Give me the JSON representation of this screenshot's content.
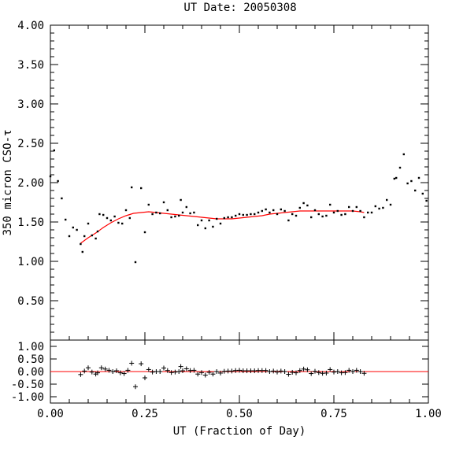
{
  "chart_data": {
    "type": "scatter",
    "title": "UT Date: 20050308",
    "xlabel": "UT (Fraction of Day)",
    "ylabel": "350 micron CSO-τ",
    "grid": false,
    "xlim": [
      0.0,
      1.0
    ],
    "x_ticks": [
      "0.00",
      "0.25",
      "0.50",
      "0.75",
      "1.00"
    ],
    "panels": {
      "main": {
        "ylim": [
          0.0,
          4.0
        ],
        "y_ticks": [
          "0.50",
          "1.00",
          "1.50",
          "2.00",
          "2.50",
          "3.00",
          "3.50",
          "4.00"
        ],
        "series": [
          {
            "kind": "measured_points",
            "color": "#000000",
            "x": [
              0.0,
              0.01,
              0.02,
              0.03,
              0.04,
              0.05,
              0.06,
              0.07,
              0.08,
              0.085,
              0.09,
              0.1,
              0.11,
              0.12,
              0.125,
              0.13,
              0.14,
              0.15,
              0.16,
              0.17,
              0.18,
              0.19,
              0.2,
              0.21,
              0.215,
              0.225,
              0.24,
              0.25,
              0.26,
              0.27,
              0.28,
              0.29,
              0.3,
              0.31,
              0.32,
              0.33,
              0.34,
              0.345,
              0.35,
              0.36,
              0.37,
              0.38,
              0.39,
              0.4,
              0.41,
              0.42,
              0.43,
              0.44,
              0.45,
              0.46,
              0.47,
              0.48,
              0.49,
              0.5,
              0.51,
              0.52,
              0.53,
              0.54,
              0.55,
              0.56,
              0.57,
              0.58,
              0.59,
              0.6,
              0.61,
              0.62,
              0.63,
              0.64,
              0.65,
              0.66,
              0.67,
              0.68,
              0.69,
              0.7,
              0.71,
              0.72,
              0.73,
              0.74,
              0.75,
              0.76,
              0.77,
              0.78,
              0.79,
              0.8,
              0.81,
              0.82,
              0.83,
              0.84,
              0.85,
              0.86,
              0.87,
              0.88,
              0.89,
              0.9,
              0.91,
              0.915,
              0.925,
              0.935,
              0.945,
              0.955,
              0.965,
              0.975,
              0.985,
              0.995
            ],
            "y": [
              2.08,
              2.41,
              2.02,
              1.8,
              1.53,
              1.32,
              1.43,
              1.4,
              1.22,
              1.12,
              1.32,
              1.48,
              1.33,
              1.29,
              1.38,
              1.6,
              1.59,
              1.55,
              1.52,
              1.57,
              1.49,
              1.48,
              1.65,
              1.55,
              1.94,
              0.99,
              1.93,
              1.37,
              1.72,
              1.6,
              1.62,
              1.61,
              1.75,
              1.65,
              1.56,
              1.57,
              1.58,
              1.78,
              1.62,
              1.69,
              1.61,
              1.62,
              1.46,
              1.52,
              1.42,
              1.52,
              1.44,
              1.54,
              1.48,
              1.55,
              1.56,
              1.56,
              1.58,
              1.6,
              1.59,
              1.59,
              1.6,
              1.6,
              1.62,
              1.64,
              1.66,
              1.62,
              1.65,
              1.6,
              1.66,
              1.64,
              1.52,
              1.6,
              1.58,
              1.68,
              1.74,
              1.71,
              1.56,
              1.65,
              1.6,
              1.57,
              1.58,
              1.72,
              1.62,
              1.64,
              1.59,
              1.6,
              1.69,
              1.64,
              1.69,
              1.64,
              1.56,
              1.62,
              1.62,
              1.7,
              1.67,
              1.68,
              1.78,
              1.72,
              2.05,
              2.06,
              2.19,
              2.36,
              1.99,
              2.02,
              1.9,
              2.06,
              1.86,
              1.77
            ],
            "fit_range_count": 88
          },
          {
            "kind": "polynomial_fit",
            "color": "#ff0000",
            "x": [
              0.08,
              0.1,
              0.12,
              0.14,
              0.16,
              0.18,
              0.2,
              0.22,
              0.24,
              0.26,
              0.28,
              0.3,
              0.32,
              0.34,
              0.36,
              0.38,
              0.4,
              0.42,
              0.44,
              0.46,
              0.48,
              0.5,
              0.52,
              0.54,
              0.56,
              0.58,
              0.6,
              0.62,
              0.64,
              0.66,
              0.68,
              0.7,
              0.72,
              0.74,
              0.76,
              0.78,
              0.8,
              0.82,
              0.83
            ],
            "y": [
              1.23,
              1.3,
              1.36,
              1.43,
              1.49,
              1.54,
              1.58,
              1.61,
              1.62,
              1.63,
              1.62,
              1.61,
              1.6,
              1.59,
              1.58,
              1.57,
              1.56,
              1.55,
              1.54,
              1.54,
              1.54,
              1.55,
              1.56,
              1.57,
              1.58,
              1.6,
              1.61,
              1.62,
              1.63,
              1.64,
              1.64,
              1.64,
              1.64,
              1.64,
              1.64,
              1.64,
              1.64,
              1.63,
              1.62
            ]
          }
        ]
      },
      "residual": {
        "ylim": [
          -1.25,
          1.25
        ],
        "y_ticks": [
          "-1.00",
          "-0.50",
          "0.00",
          "0.50",
          "1.00"
        ],
        "zero_line_color": "#ff0000",
        "points": {
          "x": [
            0.08,
            0.09,
            0.1,
            0.11,
            0.12,
            0.125,
            0.135,
            0.145,
            0.155,
            0.165,
            0.175,
            0.185,
            0.195,
            0.205,
            0.215,
            0.225,
            0.24,
            0.25,
            0.26,
            0.27,
            0.28,
            0.29,
            0.3,
            0.31,
            0.32,
            0.33,
            0.34,
            0.345,
            0.35,
            0.36,
            0.37,
            0.38,
            0.39,
            0.4,
            0.41,
            0.42,
            0.43,
            0.44,
            0.45,
            0.46,
            0.47,
            0.48,
            0.49,
            0.5,
            0.51,
            0.52,
            0.53,
            0.54,
            0.55,
            0.56,
            0.57,
            0.58,
            0.59,
            0.6,
            0.61,
            0.62,
            0.63,
            0.64,
            0.65,
            0.66,
            0.67,
            0.68,
            0.69,
            0.7,
            0.71,
            0.72,
            0.73,
            0.74,
            0.75,
            0.76,
            0.77,
            0.78,
            0.79,
            0.8,
            0.81,
            0.82,
            0.83
          ],
          "y": [
            -0.12,
            0.02,
            0.15,
            -0.02,
            -0.1,
            -0.05,
            0.15,
            0.1,
            0.05,
            0.0,
            0.03,
            -0.05,
            -0.08,
            0.05,
            0.33,
            -0.6,
            0.31,
            -0.25,
            0.08,
            -0.02,
            0.0,
            0.0,
            0.14,
            0.04,
            -0.04,
            -0.02,
            0.0,
            0.2,
            0.03,
            0.11,
            0.04,
            0.05,
            -0.1,
            -0.04,
            -0.14,
            -0.03,
            -0.1,
            0.0,
            -0.06,
            0.01,
            0.02,
            0.02,
            0.04,
            0.05,
            0.03,
            0.03,
            0.03,
            0.03,
            0.04,
            0.04,
            0.04,
            0.0,
            0.02,
            -0.02,
            0.02,
            0.0,
            -0.11,
            -0.03,
            -0.05,
            0.04,
            0.1,
            0.07,
            -0.08,
            0.01,
            -0.04,
            -0.07,
            -0.06,
            0.08,
            -0.02,
            0.0,
            -0.05,
            -0.04,
            0.05,
            0.0,
            0.05,
            0.0,
            -0.07
          ]
        }
      }
    }
  }
}
